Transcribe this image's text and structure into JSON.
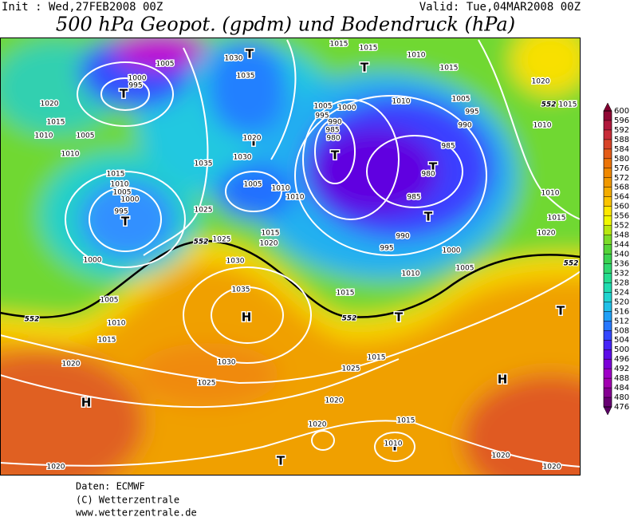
{
  "header": {
    "init": "Init : Wed,27FEB2008 00Z",
    "valid": "Valid: Tue,04MAR2008 00Z",
    "title": "500 hPa Geopot. (gpdm) und Bodendruck (hPa)"
  },
  "colorbar": {
    "levels": [
      600,
      596,
      592,
      588,
      584,
      580,
      576,
      572,
      568,
      564,
      560,
      556,
      552,
      548,
      544,
      540,
      536,
      532,
      528,
      524,
      520,
      516,
      512,
      508,
      504,
      500,
      496,
      492,
      488,
      484,
      480,
      476
    ]
  },
  "map": {
    "centers": [
      "T",
      "T",
      "T",
      "T",
      "T",
      "T",
      "T",
      "T",
      "H",
      "T",
      "T",
      "H",
      "H",
      "T",
      "T"
    ],
    "isobar_labels": [
      1005,
      1000,
      995,
      1020,
      1015,
      1010,
      1005,
      1010,
      1030,
      1035,
      1020,
      1030,
      1035,
      1015,
      1010,
      1005,
      1000,
      995,
      1025,
      1025,
      1030,
      1020,
      1015,
      1010,
      1010,
      1005,
      1000,
      1005,
      1010,
      1015,
      1020,
      1035,
      1030,
      1025,
      1025,
      1020,
      1020,
      1015,
      1010,
      1020,
      1020,
      1020,
      1015,
      1010,
      1005,
      1000,
      995,
      990,
      985,
      980,
      985,
      990,
      995,
      1005,
      1010,
      1015,
      1010,
      1015,
      1015,
      1005,
      1000,
      995,
      990,
      985,
      980,
      1020,
      1015,
      1010,
      1010,
      1015,
      1020,
      1015
    ],
    "contour_labels": [
      552,
      552,
      552,
      552,
      552
    ]
  },
  "footer": [
    "Daten: ECMWF",
    "(C) Wetterzentrale",
    "www.wetterzentrale.de"
  ]
}
